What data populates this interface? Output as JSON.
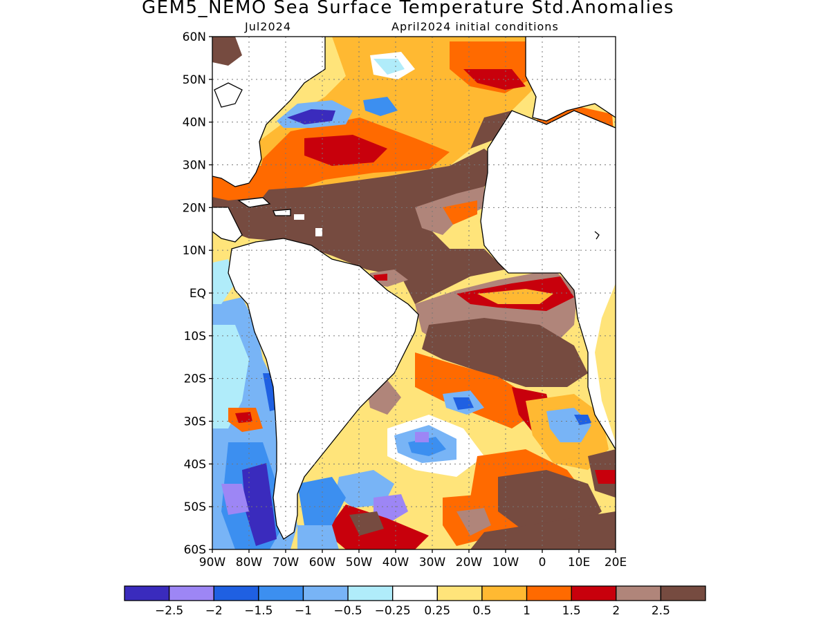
{
  "title": "GEM5_NEMO Sea Surface Temperature Std.Anomalies",
  "valid_month": "Jul2024",
  "init_conditions": "April2024 initial conditions",
  "map": {
    "lat_ticks": [
      "60N",
      "50N",
      "40N",
      "30N",
      "20N",
      "10N",
      "EQ",
      "10S",
      "20S",
      "30S",
      "40S",
      "50S",
      "60S"
    ],
    "lon_ticks": [
      "90W",
      "80W",
      "70W",
      "60W",
      "50W",
      "40W",
      "30W",
      "20W",
      "10W",
      "0",
      "10E",
      "20E"
    ],
    "lat_range": [
      -60,
      60
    ],
    "lon_range": [
      -90,
      20
    ],
    "grid": "dotted"
  },
  "colorbar": {
    "colors": [
      "#3a2bbd",
      "#9d86f5",
      "#1f60e2",
      "#3c8ff0",
      "#78b4f6",
      "#b0ecfa",
      "#ffffff",
      "#ffe47a",
      "#ffb932",
      "#ff6a00",
      "#c8000c",
      "#b0857a",
      "#764b40"
    ],
    "labels": [
      "−2.5",
      "−2",
      "−1.5",
      "−1",
      "−0.5",
      "−0.25",
      "0.25",
      "0.5",
      "1",
      "1.5",
      "2",
      "2.5"
    ]
  },
  "legend_colors": {
    "land": "#ffffff",
    "deep_brown": "#764b40",
    "light_brown": "#b0857a",
    "red": "#c8000c",
    "orange": "#ff6a00",
    "light_orange": "#ffb932",
    "yellow": "#ffe47a",
    "blue_light": "#b0ecfa",
    "blue": "#78b4f6",
    "blue_mid": "#3c8ff0",
    "blue_dark": "#1f60e2",
    "lavender": "#9d86f5",
    "indigo": "#3a2bbd"
  }
}
